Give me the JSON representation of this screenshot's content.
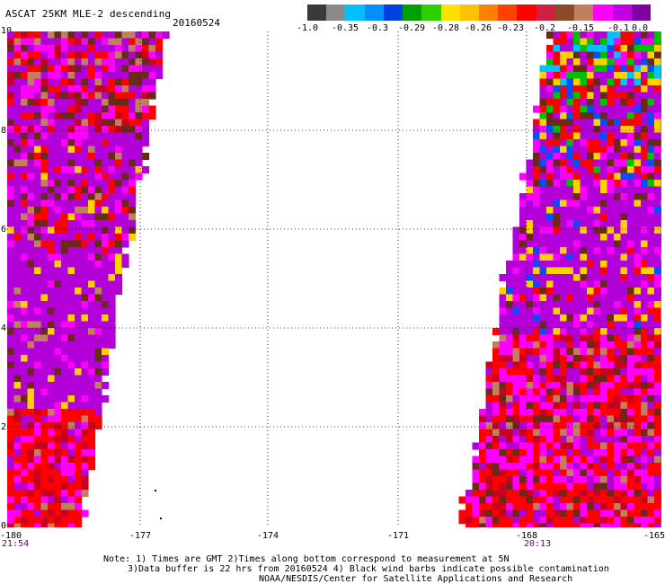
{
  "header": {
    "title": "ASCAT 25KM MLE-2 descending",
    "date": "20160524"
  },
  "colorbar": {
    "colors": [
      "#3a3a3a",
      "#8a8a8a",
      "#00c0ff",
      "#0090ff",
      "#0040e0",
      "#00a000",
      "#30d000",
      "#ffe000",
      "#ffc000",
      "#ff8000",
      "#ff4000",
      "#ff0000",
      "#d02040",
      "#8b4a2a",
      "#c08060",
      "#ff00ff",
      "#c000e0",
      "#8000a0"
    ],
    "labels": [
      "-1.0",
      "-0.35",
      "-0.3",
      "-0.29",
      "-0.28",
      "-0.26",
      "-0.23",
      "-0.2",
      "-0.15",
      "-0.1",
      "0.0"
    ]
  },
  "axes": {
    "y_ticks": [
      "10",
      "8",
      "6",
      "4",
      "2",
      "0"
    ],
    "x_ticks": [
      "-180",
      "-177",
      "-174",
      "-171",
      "-168",
      "-165"
    ],
    "time_labels": [
      "21:54",
      "20:13"
    ]
  },
  "notes": {
    "line1": "Note: 1) Times are GMT 2)Times along bottom correspond to measurement at 5N",
    "line2": "3)Data buffer is 22 hrs from 20160524 4) Black wind barbs indicate possible contamination",
    "line3": "NOAA/NESDIS/Center for Satellite Applications and Research"
  },
  "map_data": {
    "lon_range": [
      -180,
      -165
    ],
    "lat_range": [
      0,
      10
    ],
    "palette": {
      "purple": "#b400d8",
      "magenta": "#ff00ff",
      "red": "#ff0000",
      "darkred": "#c80020",
      "brown": "#6a2a1a",
      "tan": "#c08060",
      "yellow": "#ffd000",
      "orange": "#ffa000",
      "green": "#00c000",
      "blue": "#0050ff",
      "cyan": "#00c0ff"
    }
  }
}
